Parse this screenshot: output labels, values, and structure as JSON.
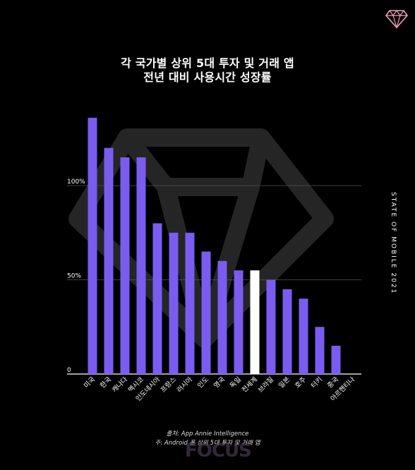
{
  "header": {
    "title_line1": "각 국가별 상위 5대 투자 및 거래 앱",
    "title_line2": "전년 대비 사용시간 성장률"
  },
  "sidebar_text": "STATE OF MOBILE 2021",
  "footer": {
    "source": "출처: App Annie Intelligence",
    "note": "주: Android 폰 상위 5대 투자 및 거래 앱",
    "watermark": "FOCUS"
  },
  "colors": {
    "bar": "#7a5cf0",
    "highlight": "#ffffff",
    "background": "#000000",
    "grid": "#555555"
  },
  "chart_data": {
    "type": "bar",
    "title": "각 국가별 상위 5대 투자 및 거래 앱 전년 대비 사용시간 성장률",
    "categories": [
      "미국",
      "한국",
      "캐나다",
      "멕시코",
      "인도네시아",
      "프랑스",
      "러시아",
      "인도",
      "영국",
      "독일",
      "전세계",
      "브라질",
      "일본",
      "호주",
      "터키",
      "중국",
      "아르헨티나"
    ],
    "values": [
      136,
      120,
      115,
      115,
      80,
      75,
      75,
      65,
      60,
      55,
      55,
      50,
      45,
      40,
      25,
      15,
      0
    ],
    "highlight_category": "전세계",
    "yticks": [
      0,
      50,
      100
    ],
    "ytick_labels": [
      "0",
      "50%",
      "100%"
    ],
    "ylim": [
      0,
      140
    ],
    "grid": true
  }
}
